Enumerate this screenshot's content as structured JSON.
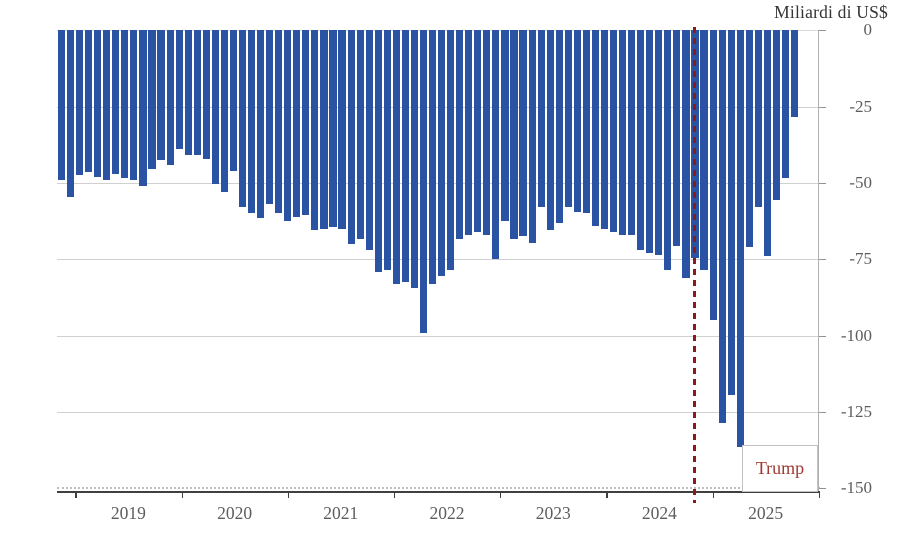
{
  "title": "Miliardi di US$",
  "annotation": {
    "label": "Trump",
    "line_color": "#8b1b1b",
    "text_color": "#a13732"
  },
  "chart_data": {
    "type": "bar",
    "title": "Miliardi di US$",
    "ylabel": "Miliardi di US$",
    "ylim": [
      -150,
      0
    ],
    "grid": true,
    "bar_color": "#2b53a3",
    "y_tick_labels": [
      "0",
      "-25",
      "-50",
      "-75",
      "-100",
      "-125",
      "-150"
    ],
    "y_ticks": [
      0,
      -25,
      -50,
      -75,
      -100,
      -125,
      -150
    ],
    "x_tick_years": [
      "2019",
      "2020",
      "2021",
      "2022",
      "2023",
      "2024",
      "2025"
    ],
    "frequency": "monthly",
    "values": [
      -49,
      -54.5,
      -47.5,
      -46.5,
      -48,
      -49,
      -47,
      -48.5,
      -49,
      -51,
      -45.5,
      -42.5,
      -44,
      -39,
      -41,
      -41,
      -42,
      -50.5,
      -53,
      -46,
      -58,
      -60,
      -61.5,
      -57,
      -60,
      -62.5,
      -61,
      -60.5,
      -65.5,
      -65,
      -64.5,
      -65,
      -70,
      -68.5,
      -72,
      -79,
      -78.5,
      -83,
      -82.5,
      -84.5,
      -99,
      -83,
      -80.5,
      -78.5,
      -68.5,
      -67,
      -66,
      -67,
      -75,
      -62.5,
      -68.5,
      -67.5,
      -69.5,
      -58,
      -65.5,
      -63,
      -58,
      -59.5,
      -60,
      -64,
      -65,
      -66,
      -67,
      -67,
      -72,
      -73,
      -73.5,
      -78.5,
      -70.5,
      -81,
      -74.5,
      -78.5,
      -95,
      -128.5,
      -119.5,
      -136.5,
      -71,
      -58,
      -74,
      -55.5,
      -48.5,
      -28.5
    ],
    "annotation_line": {
      "label": "Trump",
      "x_position": "late 2024",
      "style": "dashed",
      "color": "#8b1b1b"
    }
  }
}
